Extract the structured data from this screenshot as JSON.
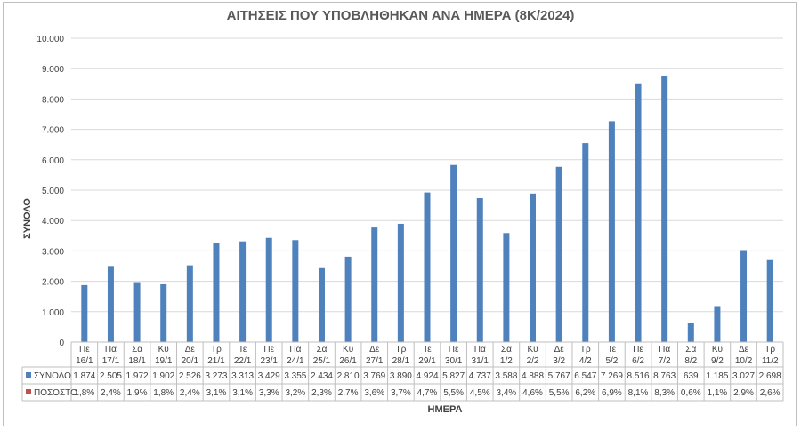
{
  "chart_data": {
    "type": "bar",
    "title": "ΑΙΤΗΣΕΙΣ ΠΟΥ ΥΠΟΒΛΗΘΗΚΑΝ ΑΝΑ ΗΜΕΡΑ (8Κ/2024)",
    "xlabel": "ΗΜΕΡΑ",
    "ylabel": "ΣΥΝΟΛΟ",
    "ylim": [
      0,
      10000
    ],
    "yticks": [
      "0",
      "1.000",
      "2.000",
      "3.000",
      "4.000",
      "5.000",
      "6.000",
      "7.000",
      "8.000",
      "9.000",
      "10.000"
    ],
    "grid": true,
    "legend": "table",
    "colors": {
      "bar": "#4f81bd",
      "percent_marker": "#c0504d"
    },
    "days": [
      "Πε",
      "Πα",
      "Σα",
      "Κυ",
      "Δε",
      "Τρ",
      "Τε",
      "Πε",
      "Πα",
      "Σα",
      "Κυ",
      "Δε",
      "Τρ",
      "Τε",
      "Πε",
      "Πα",
      "Σα",
      "Κυ",
      "Δε",
      "Τρ",
      "Τε",
      "Πε",
      "Πα",
      "Σα",
      "Κυ",
      "Δε",
      "Τρ"
    ],
    "dates": [
      "16/1",
      "17/1",
      "18/1",
      "19/1",
      "20/1",
      "21/1",
      "22/1",
      "23/1",
      "24/1",
      "25/1",
      "26/1",
      "27/1",
      "28/1",
      "29/1",
      "30/1",
      "31/1",
      "1/2",
      "2/2",
      "3/2",
      "4/2",
      "5/2",
      "6/2",
      "7/2",
      "8/2",
      "9/2",
      "10/2",
      "11/2"
    ],
    "series": [
      {
        "name": "ΣΥΝΟΛΟ",
        "values": [
          1874,
          2505,
          1972,
          1902,
          2526,
          3273,
          3313,
          3429,
          3355,
          2434,
          2810,
          3769,
          3890,
          4924,
          5827,
          4737,
          3588,
          4888,
          5767,
          6547,
          7269,
          8516,
          8763,
          639,
          1185,
          3027,
          2698
        ],
        "labels": [
          "1.874",
          "2.505",
          "1.972",
          "1.902",
          "2.526",
          "3.273",
          "3.313",
          "3.429",
          "3.355",
          "2.434",
          "2.810",
          "3.769",
          "3.890",
          "4.924",
          "5.827",
          "4.737",
          "3.588",
          "4.888",
          "5.767",
          "6.547",
          "7.269",
          "8.516",
          "8.763",
          "639",
          "1.185",
          "3.027",
          "2.698"
        ]
      },
      {
        "name": "ΠΟΣΟΣΤΟ",
        "labels": [
          "1,8%",
          "2,4%",
          "1,9%",
          "1,8%",
          "2,4%",
          "3,1%",
          "3,1%",
          "3,3%",
          "3,2%",
          "2,3%",
          "2,7%",
          "3,6%",
          "3,7%",
          "4,7%",
          "5,5%",
          "4,5%",
          "3,4%",
          "4,6%",
          "5,5%",
          "6,2%",
          "6,9%",
          "8,1%",
          "8,3%",
          "0,6%",
          "1,1%",
          "2,9%",
          "2,6%"
        ]
      }
    ]
  }
}
